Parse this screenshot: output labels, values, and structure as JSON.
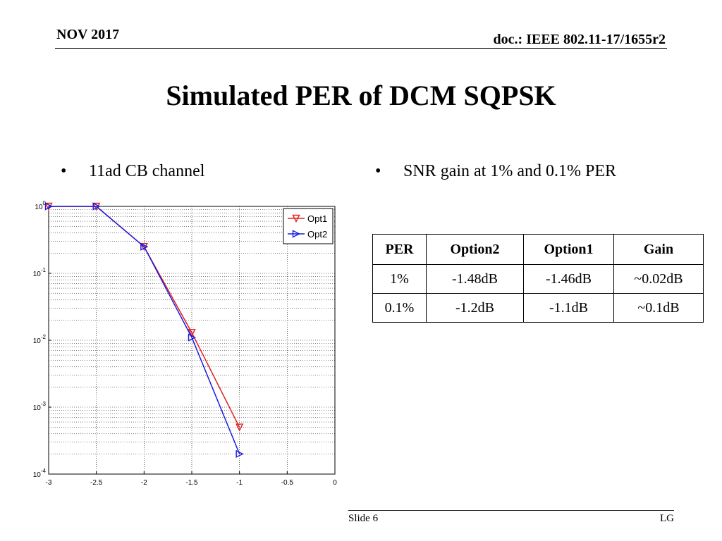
{
  "header": {
    "date": "NOV 2017",
    "doc": "doc.: IEEE 802.11-17/1655r2"
  },
  "title": "Simulated PER of DCM SQPSK",
  "bullets": [
    {
      "symbol": "•",
      "text": "11ad CB channel"
    },
    {
      "symbol": "•",
      "text": "SNR gain at 1% and 0.1% PER"
    }
  ],
  "chart_data": {
    "type": "line",
    "title": "",
    "xlabel": "",
    "ylabel": "",
    "xlim": [
      -3,
      0
    ],
    "ylim": [
      0.0001,
      1
    ],
    "yscale": "log",
    "grid": true,
    "legend_position": "top-right",
    "x_ticks": [
      "-3",
      "-2.5",
      "-2",
      "-1.5",
      "-1",
      "-0.5",
      "0"
    ],
    "x_tick_values": [
      -3,
      -2.5,
      -2,
      -1.5,
      -1,
      -0.5,
      0
    ],
    "y_ticks": [
      {
        "value": 1,
        "base": "10",
        "exp": "0"
      },
      {
        "value": 0.1,
        "base": "10",
        "exp": "-1"
      },
      {
        "value": 0.01,
        "base": "10",
        "exp": "-2"
      },
      {
        "value": 0.001,
        "base": "10",
        "exp": "-3"
      },
      {
        "value": 0.0001,
        "base": "10",
        "exp": "-4"
      }
    ],
    "series": [
      {
        "name": "Opt1",
        "color": "#e02020",
        "marker": "triangle-down",
        "x": [
          -3,
          -2.5,
          -2,
          -1.5,
          -1
        ],
        "y": [
          1,
          1,
          0.25,
          0.013,
          0.0005
        ]
      },
      {
        "name": "Opt2",
        "color": "#1a1ae0",
        "marker": "triangle-right",
        "x": [
          -3,
          -2.5,
          -2,
          -1.5,
          -1
        ],
        "y": [
          1,
          1,
          0.25,
          0.011,
          0.0002
        ]
      }
    ]
  },
  "table": {
    "headers": [
      "PER",
      "Option2",
      "Option1",
      "Gain"
    ],
    "rows": [
      [
        "1%",
        "-1.48dB",
        "-1.46dB",
        "~0.02dB"
      ],
      [
        "0.1%",
        "-1.2dB",
        "-1.1dB",
        "~0.1dB"
      ]
    ]
  },
  "footer": {
    "slide": "Slide 6",
    "org": "LG"
  }
}
